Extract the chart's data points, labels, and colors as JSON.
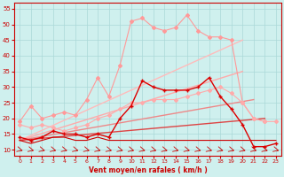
{
  "xlabel": "Vent moyen/en rafales ( km/h )",
  "xlim": [
    -0.5,
    23.5
  ],
  "ylim": [
    8,
    57
  ],
  "yticks": [
    10,
    15,
    20,
    25,
    30,
    35,
    40,
    45,
    50,
    55
  ],
  "xticks": [
    0,
    1,
    2,
    3,
    4,
    5,
    6,
    7,
    8,
    9,
    10,
    11,
    12,
    13,
    14,
    15,
    16,
    17,
    18,
    19,
    20,
    21,
    22,
    23
  ],
  "bg_color": "#cff0ee",
  "grid_color": "#aad8d8",
  "lines": [
    {
      "x": [
        0,
        1,
        2,
        3,
        4,
        5,
        6,
        7,
        8,
        9,
        10,
        11,
        12,
        13,
        14,
        15,
        16,
        17,
        18,
        19,
        20,
        21,
        22
      ],
      "y": [
        19,
        24,
        20,
        21,
        22,
        21,
        26,
        33,
        27,
        37,
        51,
        52,
        49,
        48,
        49,
        53,
        48,
        46,
        46,
        45,
        25,
        20,
        19
      ],
      "color": "#ff9999",
      "lw": 0.8,
      "marker": "D",
      "ms": 2.0,
      "alpha": 1.0
    },
    {
      "x": [
        0,
        1,
        2,
        3,
        4,
        5,
        6,
        7,
        8,
        9,
        10,
        11,
        12,
        13,
        14,
        15,
        16,
        17,
        18,
        19,
        20,
        21,
        22,
        23
      ],
      "y": [
        18,
        17,
        18,
        17,
        16,
        17,
        18,
        20,
        21,
        23,
        25,
        25,
        26,
        26,
        26,
        27,
        28,
        29,
        30,
        28,
        25,
        20,
        19,
        19
      ],
      "color": "#ffaaaa",
      "lw": 0.8,
      "marker": "D",
      "ms": 2.0,
      "alpha": 1.0
    },
    {
      "x": [
        0,
        1,
        2,
        3,
        4,
        5,
        6,
        7,
        8,
        9,
        10,
        11,
        12,
        13,
        14,
        15,
        16,
        17,
        18,
        19,
        20,
        21,
        22,
        23
      ],
      "y": [
        14,
        13,
        14,
        16,
        15,
        15,
        14,
        15,
        14,
        20,
        24,
        32,
        30,
        29,
        29,
        29,
        30,
        33,
        27,
        23,
        18,
        11,
        11,
        12
      ],
      "color": "#dd0000",
      "lw": 1.0,
      "marker": "+",
      "ms": 3.5,
      "alpha": 1.0
    },
    {
      "x": [
        0,
        20
      ],
      "y": [
        13,
        45
      ],
      "color": "#ffbbbb",
      "lw": 1.0,
      "marker": null,
      "ms": 0,
      "alpha": 1.0
    },
    {
      "x": [
        0,
        20
      ],
      "y": [
        13,
        35
      ],
      "color": "#ffaaaa",
      "lw": 1.0,
      "marker": null,
      "ms": 0,
      "alpha": 1.0
    },
    {
      "x": [
        0,
        21
      ],
      "y": [
        13,
        26
      ],
      "color": "#ee8888",
      "lw": 1.0,
      "marker": null,
      "ms": 0,
      "alpha": 1.0
    },
    {
      "x": [
        0,
        22
      ],
      "y": [
        13,
        20
      ],
      "color": "#dd4444",
      "lw": 1.0,
      "marker": null,
      "ms": 0,
      "alpha": 1.0
    },
    {
      "x": [
        0,
        1,
        2,
        3,
        4,
        5,
        6,
        7,
        8,
        9,
        10,
        11,
        12,
        13,
        14,
        15,
        16,
        17,
        18,
        19,
        20,
        21,
        22,
        23
      ],
      "y": [
        13,
        12,
        13,
        14,
        14,
        13,
        13,
        14,
        13,
        13,
        13,
        13,
        13,
        13,
        13,
        13,
        13,
        13,
        13,
        13,
        13,
        13,
        13,
        13
      ],
      "color": "#cc0000",
      "lw": 0.8,
      "marker": null,
      "ms": 0,
      "alpha": 1.0
    }
  ]
}
